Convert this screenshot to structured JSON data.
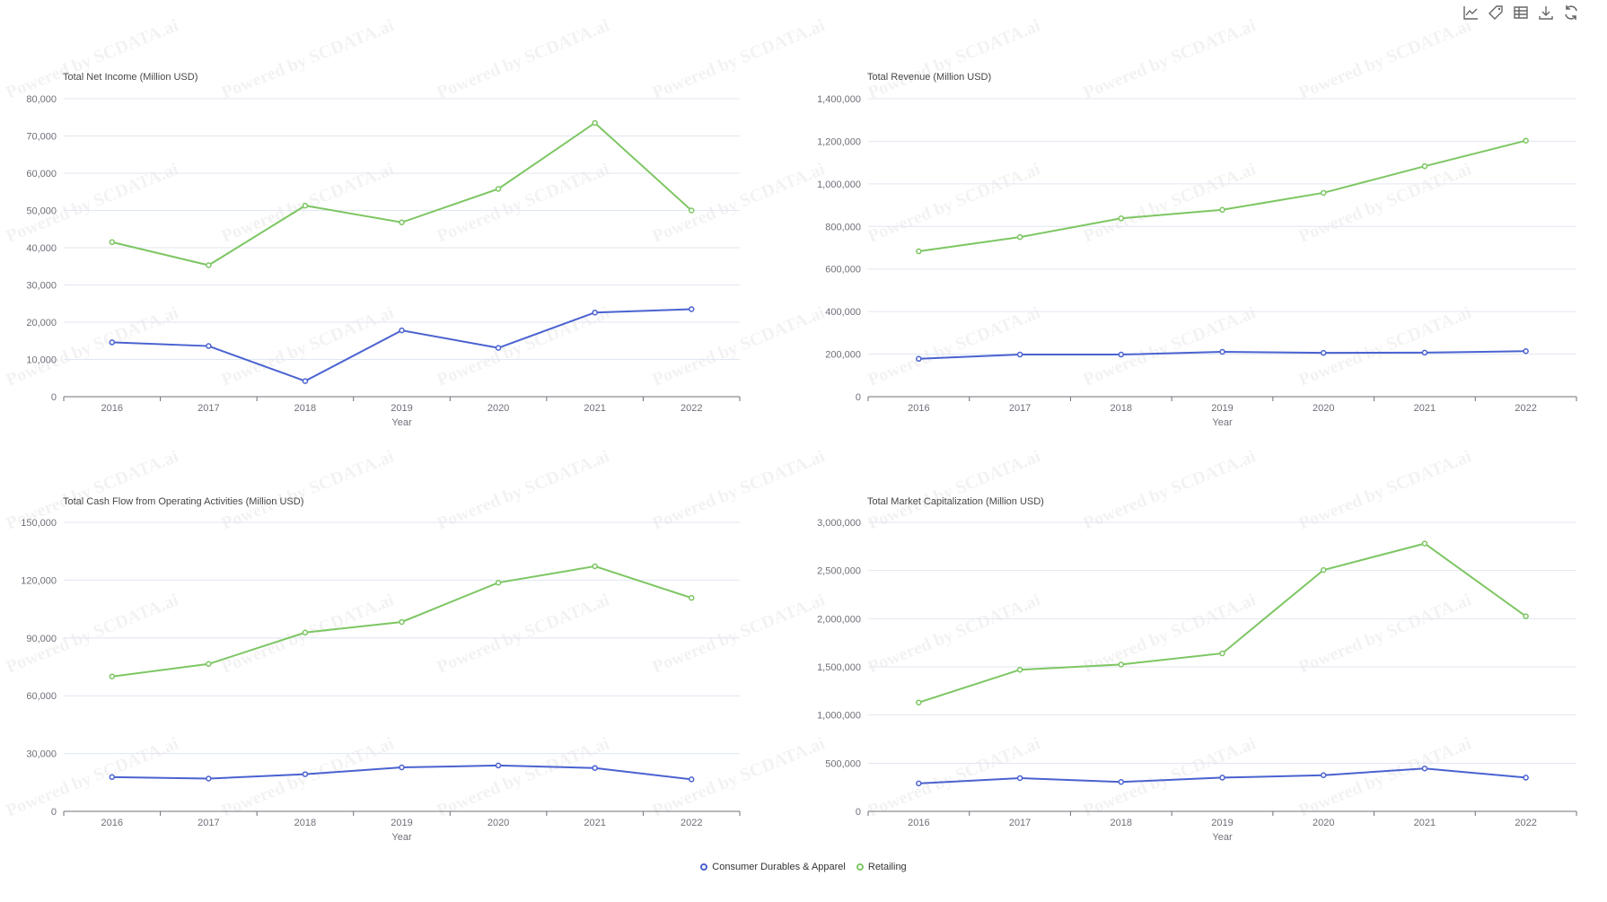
{
  "watermark": "Powered by SCDATA.ai",
  "toolbar": [
    "line-chart-icon",
    "tag-icon",
    "data-view-icon",
    "download-icon",
    "refresh-icon"
  ],
  "legend": [
    {
      "name": "Consumer Durables & Apparel",
      "color": "#4a62d0"
    },
    {
      "name": "Retailing",
      "color": "#7dc663"
    }
  ],
  "chart_data": [
    {
      "type": "line",
      "title": "Total Net Income (Million USD)",
      "xlabel": "Year",
      "ylabel": "",
      "categories": [
        "2016",
        "2017",
        "2018",
        "2019",
        "2020",
        "2021",
        "2022"
      ],
      "ylim": [
        0,
        80000
      ],
      "yticks": [
        "0",
        "10,000",
        "20,000",
        "30,000",
        "40,000",
        "50,000",
        "60,000",
        "70,000",
        "80,000"
      ],
      "series": [
        {
          "name": "Consumer Durables & Apparel",
          "values": [
            14600,
            13600,
            4200,
            17800,
            13100,
            22600,
            23500
          ]
        },
        {
          "name": "Retailing",
          "values": [
            41500,
            35300,
            51300,
            46800,
            55800,
            73500,
            50000
          ]
        }
      ]
    },
    {
      "type": "line",
      "title": "Total Revenue (Million USD)",
      "xlabel": "Year",
      "ylabel": "",
      "categories": [
        "2016",
        "2017",
        "2018",
        "2019",
        "2020",
        "2021",
        "2022"
      ],
      "ylim": [
        0,
        1400000
      ],
      "yticks": [
        "0",
        "200,000",
        "400,000",
        "600,000",
        "800,000",
        "1,000,000",
        "1,200,000",
        "1,400,000"
      ],
      "series": [
        {
          "name": "Consumer Durables & Apparel",
          "values": [
            178000,
            198000,
            198000,
            211000,
            206000,
            207000,
            214000
          ]
        },
        {
          "name": "Retailing",
          "values": [
            683000,
            750000,
            838000,
            878000,
            958000,
            1083000,
            1203000
          ]
        }
      ]
    },
    {
      "type": "line",
      "title": "Total Cash Flow from Operating Activities (Million USD)",
      "xlabel": "Year",
      "ylabel": "",
      "categories": [
        "2016",
        "2017",
        "2018",
        "2019",
        "2020",
        "2021",
        "2022"
      ],
      "ylim": [
        0,
        150000
      ],
      "yticks": [
        "0",
        "30,000",
        "60,000",
        "90,000",
        "120,000",
        "150,000"
      ],
      "series": [
        {
          "name": "Consumer Durables & Apparel",
          "values": [
            17800,
            17000,
            19300,
            22800,
            23800,
            22500,
            16600
          ]
        },
        {
          "name": "Retailing",
          "values": [
            70000,
            76500,
            92800,
            98300,
            118700,
            127200,
            110800
          ]
        }
      ]
    },
    {
      "type": "line",
      "title": "Total Market Capitalization (Million USD)",
      "xlabel": "Year",
      "ylabel": "",
      "categories": [
        "2016",
        "2017",
        "2018",
        "2019",
        "2020",
        "2021",
        "2022"
      ],
      "ylim": [
        0,
        3000000
      ],
      "yticks": [
        "0",
        "500,000",
        "1,000,000",
        "1,500,000",
        "2,000,000",
        "2,500,000",
        "3,000,000"
      ],
      "series": [
        {
          "name": "Consumer Durables & Apparel",
          "values": [
            290000,
            345000,
            305000,
            350000,
            375000,
            445000,
            350000
          ]
        },
        {
          "name": "Retailing",
          "values": [
            1130000,
            1470000,
            1525000,
            1640000,
            2505000,
            2780000,
            2025000
          ]
        }
      ]
    }
  ]
}
